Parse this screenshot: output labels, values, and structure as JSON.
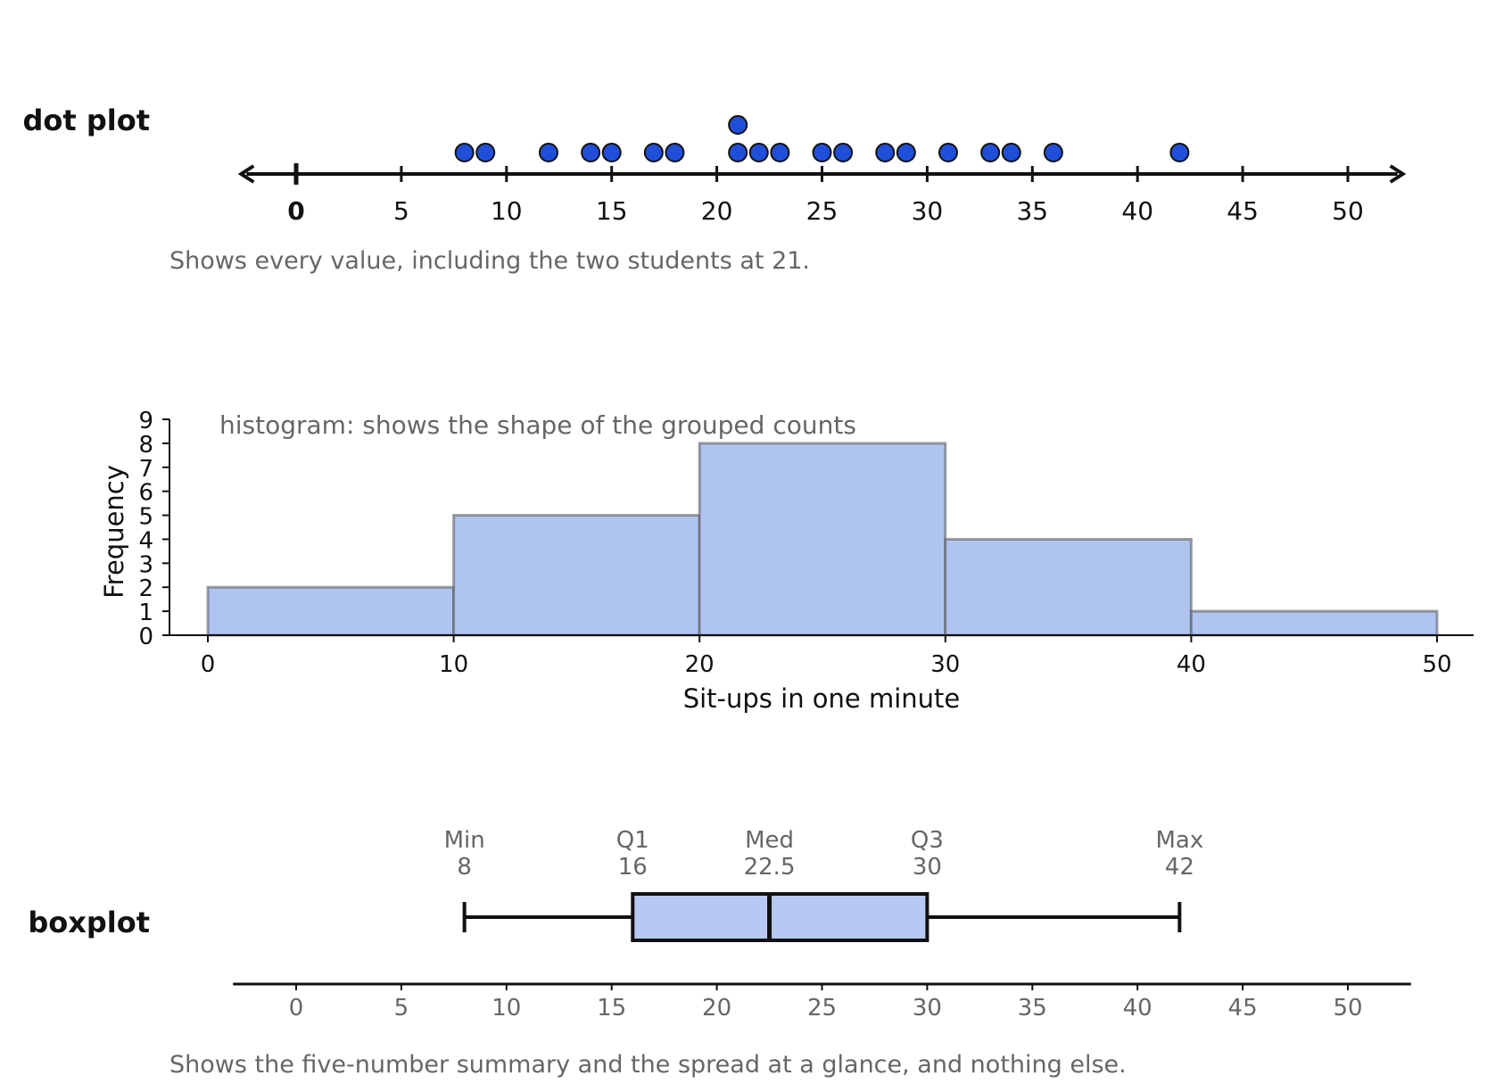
{
  "colors": {
    "dot_fill": "#1f4fd9",
    "bar_fill": "#b0c4f2",
    "box_fill": "#b7c9f3",
    "axis": "#111111",
    "muted_text": "#666666"
  },
  "chart_data": [
    {
      "type": "scatter",
      "label": "dot plot",
      "values": [
        8,
        9,
        12,
        14,
        15,
        17,
        18,
        21,
        21,
        22,
        23,
        25,
        26,
        28,
        29,
        31,
        33,
        34,
        36,
        42
      ],
      "xlim": [
        -2.7,
        52.7
      ],
      "xticks": [
        0,
        5,
        10,
        15,
        20,
        25,
        30,
        35,
        40,
        45,
        50
      ],
      "caption": "Shows every value, including the two students at 21."
    },
    {
      "type": "bar",
      "bins": [
        [
          0,
          10
        ],
        [
          10,
          20
        ],
        [
          20,
          30
        ],
        [
          30,
          40
        ],
        [
          40,
          50
        ]
      ],
      "values": [
        2,
        5,
        8,
        4,
        1
      ],
      "annotation": "histogram: shows the shape of the grouped counts",
      "xlabel": "Sit-ups in one minute",
      "ylabel": "Frequency",
      "ylim": [
        0,
        9
      ],
      "yticks": [
        0,
        1,
        2,
        3,
        4,
        5,
        6,
        7,
        8,
        9
      ],
      "xticks": [
        0,
        10,
        20,
        30,
        40,
        50
      ],
      "xlim": [
        -1.6,
        51.5
      ]
    },
    {
      "type": "boxplot",
      "label": "boxplot",
      "min": 8,
      "q1": 16,
      "median": 22.5,
      "q3": 30,
      "max": 42,
      "summary_labels": [
        {
          "name": "Min",
          "value": "8",
          "x": 8
        },
        {
          "name": "Q1",
          "value": "16",
          "x": 16
        },
        {
          "name": "Med",
          "value": "22.5",
          "x": 22.5
        },
        {
          "name": "Q3",
          "value": "30",
          "x": 30
        },
        {
          "name": "Max",
          "value": "42",
          "x": 42
        }
      ],
      "xlim": [
        -3,
        53
      ],
      "xticks": [
        0,
        5,
        10,
        15,
        20,
        25,
        30,
        35,
        40,
        45,
        50
      ],
      "caption": "Shows the five-number summary and the spread at a glance, and nothing else."
    }
  ]
}
